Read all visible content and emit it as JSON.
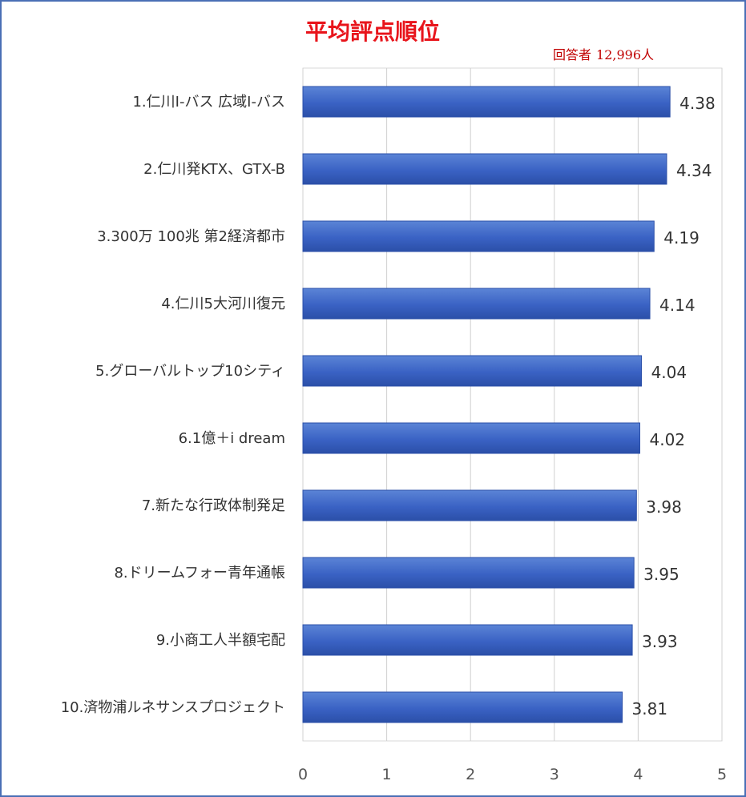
{
  "title": "平均評点順位",
  "respondents": {
    "label": "回答者",
    "count": "12,996人"
  },
  "colors": {
    "bar": "#3a62c4",
    "bar_edge": "#2b4fa8",
    "title": "#e8141b",
    "frame": "#4a6fb5",
    "grid": "#d0d0d0"
  },
  "chart_data": {
    "type": "bar",
    "orientation": "horizontal",
    "title": "平均評点順位",
    "categories": [
      "1.仁川I-バス 広域I-バス",
      "2.仁川発KTX、GTX-B",
      "3.300万 100兆 第2経済都市",
      "4.仁川5大河川復元",
      "5.グローバルトップ10シティ",
      "6.1億＋i dream",
      "7.新たな行政体制発足",
      "8.ドリームフォー青年通帳",
      "9.小商工人半額宅配",
      "10.済物浦ルネサンスプロジェクト"
    ],
    "values": [
      4.38,
      4.34,
      4.19,
      4.14,
      4.04,
      4.02,
      3.98,
      3.95,
      3.93,
      3.81
    ],
    "value_labels": [
      "4.38",
      "4.34",
      "4.19",
      "4.14",
      "4.04",
      "4.02",
      "3.98",
      "3.95",
      "3.93",
      "3.81"
    ],
    "xlim": [
      0,
      5
    ],
    "xticks": [
      0,
      1,
      2,
      3,
      4,
      5
    ],
    "xtick_labels": [
      "0",
      "1",
      "2",
      "3",
      "4",
      "5"
    ],
    "grid": true,
    "legend": "none"
  }
}
